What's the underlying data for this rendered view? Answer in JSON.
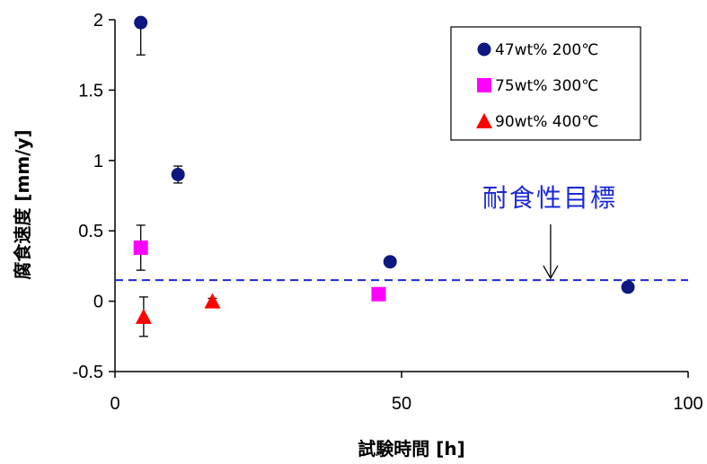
{
  "chart_data": {
    "type": "scatter",
    "xlabel": "試験時間 [h]",
    "ylabel": "腐食速度 [mm/y]",
    "xlim": [
      0,
      100
    ],
    "ylim": [
      -0.5,
      2
    ],
    "x_ticks": [
      "0",
      "50",
      "100"
    ],
    "y_ticks": [
      "-0.5",
      "0",
      "0.5",
      "1",
      "1.5",
      "2"
    ],
    "grid": false,
    "legend_position": "top-right",
    "series": [
      {
        "name": "47wt% 200℃",
        "marker": "circle",
        "color": "#0d1780",
        "points": [
          {
            "x": 4.5,
            "y": 1.98,
            "err_low": 0.23,
            "err_high": 0
          },
          {
            "x": 11,
            "y": 0.9,
            "err_low": 0.06,
            "err_high": 0.06
          },
          {
            "x": 48,
            "y": 0.28,
            "err_low": 0,
            "err_high": 0
          },
          {
            "x": 89.5,
            "y": 0.1,
            "err_low": 0,
            "err_high": 0
          }
        ]
      },
      {
        "name": "75wt% 300℃",
        "marker": "square",
        "color": "#ff00ff",
        "points": [
          {
            "x": 4.5,
            "y": 0.38,
            "err_low": 0.16,
            "err_high": 0.16
          },
          {
            "x": 46,
            "y": 0.05,
            "err_low": 0,
            "err_high": 0
          }
        ]
      },
      {
        "name": "90wt% 400℃",
        "marker": "triangle",
        "color": "#ff0000",
        "points": [
          {
            "x": 5,
            "y": -0.11,
            "err_low": 0.14,
            "err_high": 0.14
          },
          {
            "x": 17,
            "y": 0.0,
            "err_low": 0.02,
            "err_high": 0.02
          }
        ]
      }
    ],
    "reference_line": {
      "y": 0.15,
      "style": "dashed",
      "color": "#1a28d6"
    },
    "annotation": {
      "text": "耐食性目標",
      "arrow_to_x": 76,
      "color": "#1a28d6"
    }
  }
}
